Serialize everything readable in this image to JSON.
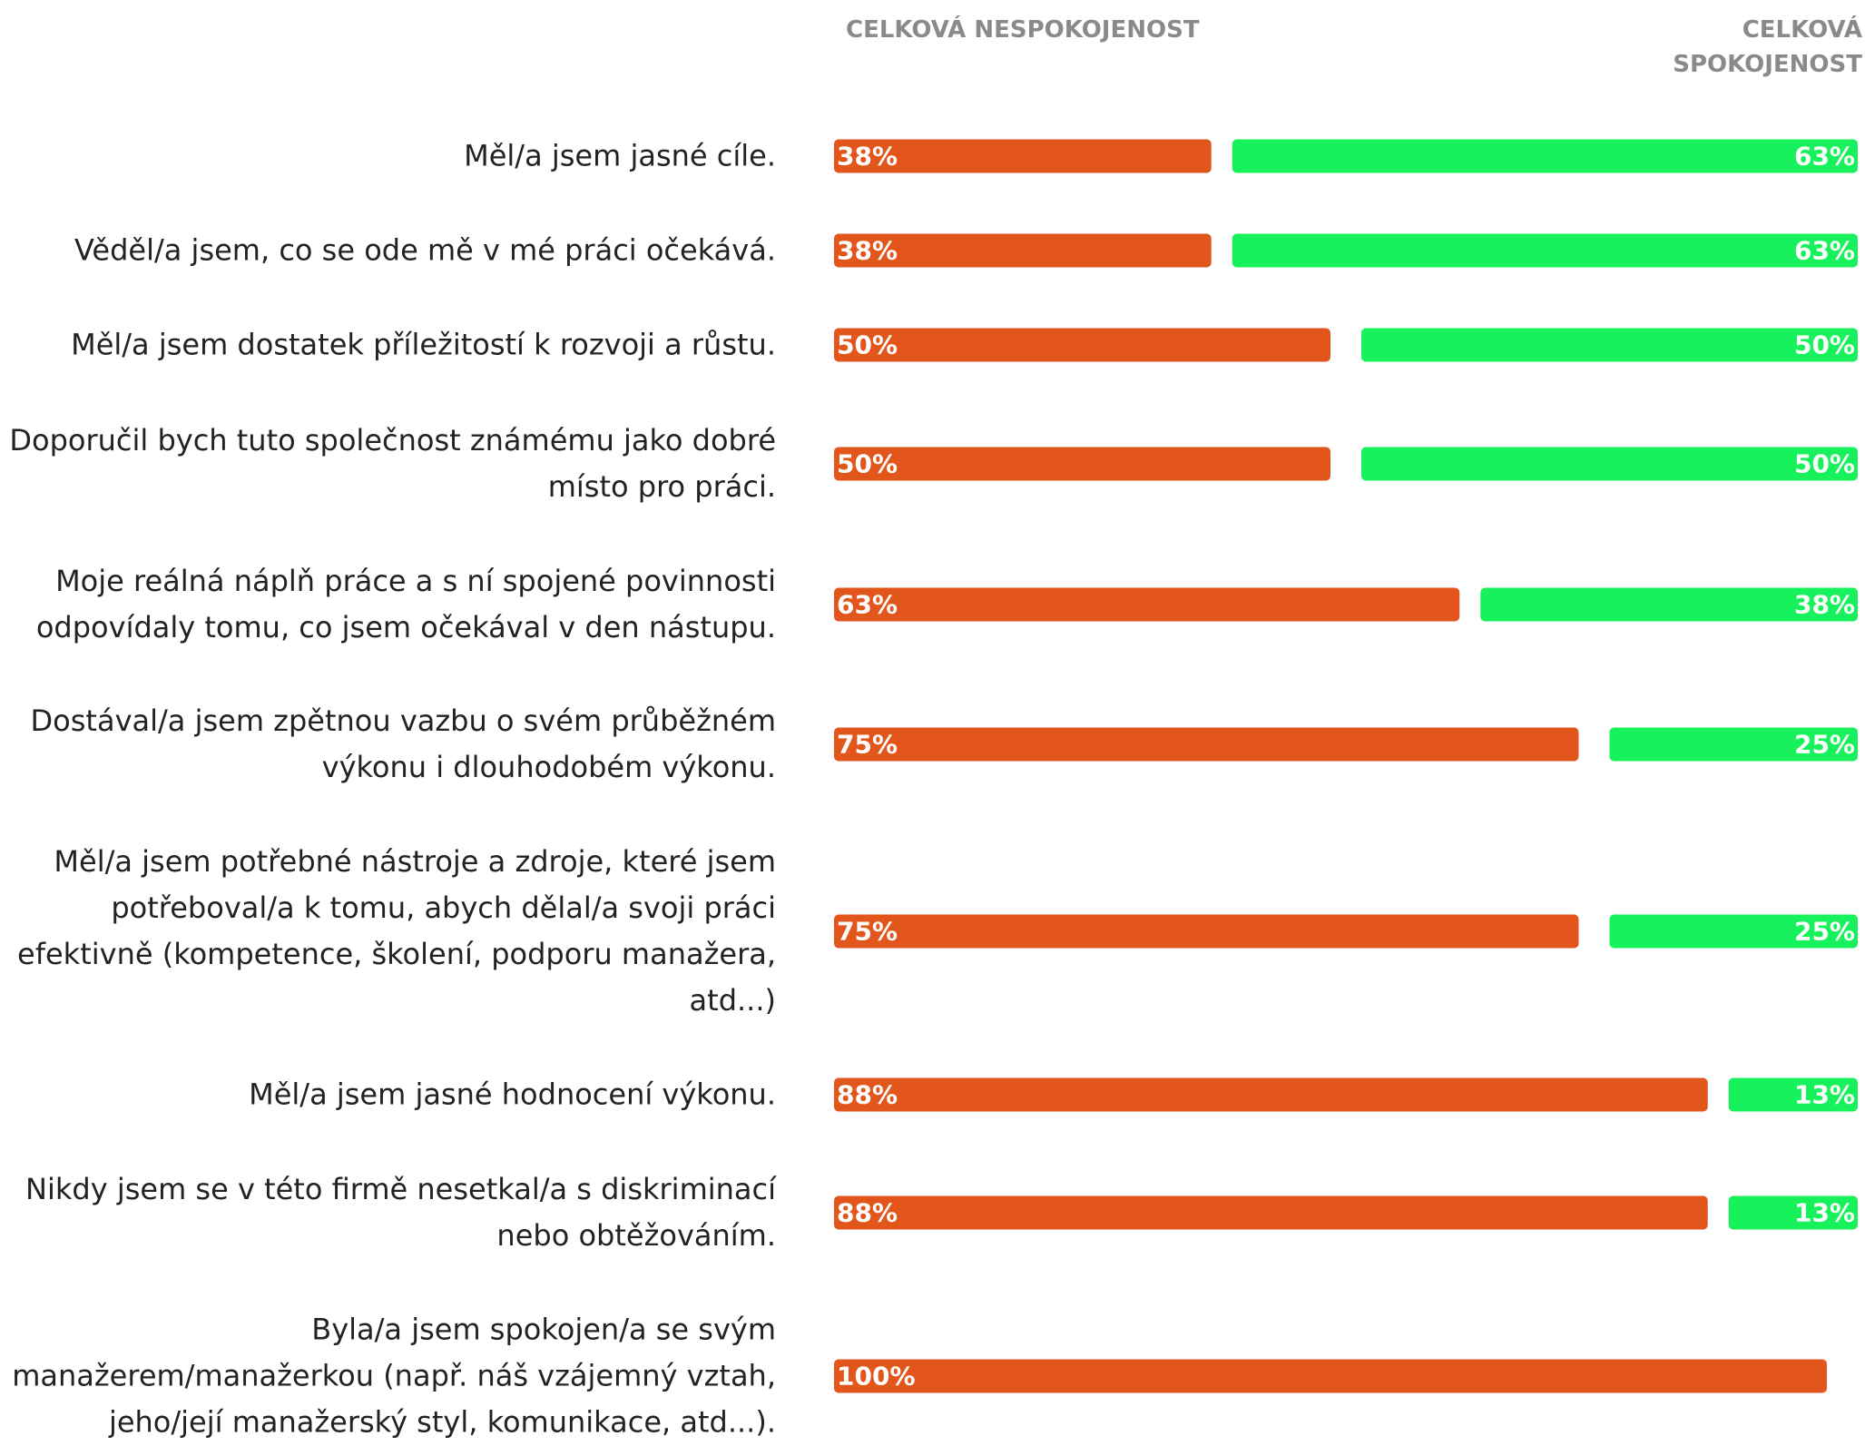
{
  "chart_data": {
    "type": "bar",
    "categories": [
      "Měl/a jsem jasné cíle.",
      "Věděl/a jsem, co se ode mě v mé práci očekává.",
      "Měl/a jsem dostatek příležitostí k rozvoji a růstu.",
      "Doporučil bych tuto společnost známému jako dobré místo pro práci.",
      "Moje reálná náplň práce a s ní spojené povinnosti odpovídaly tomu, co jsem očekával v den nástupu.",
      "Dostával/a jsem zpětnou vazbu o svém průběžném výkonu i dlouhodobém výkonu.",
      "Měl/a jsem potřebné nástroje a zdroje, které jsem potřeboval/a k tomu, abych dělal/a svoji práci efektivně (kompetence, školení, podporu manažera, atd...)",
      "Měl/a jsem jasné hodnocení výkonu.",
      "Nikdy jsem se v této firmě nesetkal/a s diskriminací nebo obtěžováním.",
      "Byla/a jsem spokojen/a se svým manažerem/manažerkou (např. náš vzájemný vztah, jeho/její manažerský styl, komunikace, atd...)."
    ],
    "series": [
      {
        "name": "CELKOVÁ NESPOKOJENOST",
        "color": "#e2561c",
        "values": [
          38,
          38,
          50,
          50,
          63,
          75,
          75,
          88,
          88,
          100
        ],
        "value_labels": [
          "38%",
          "38%",
          "50%",
          "50%",
          "63%",
          "75%",
          "75%",
          "88%",
          "88%",
          "100%"
        ]
      },
      {
        "name": "CELKOVÁ SPOKOJENOST",
        "color": "#17f25c",
        "values": [
          63,
          63,
          50,
          50,
          38,
          25,
          25,
          13,
          13,
          0
        ],
        "value_labels": [
          "63%",
          "63%",
          "50%",
          "50%",
          "38%",
          "25%",
          "25%",
          "13%",
          "13%",
          null
        ]
      }
    ]
  }
}
